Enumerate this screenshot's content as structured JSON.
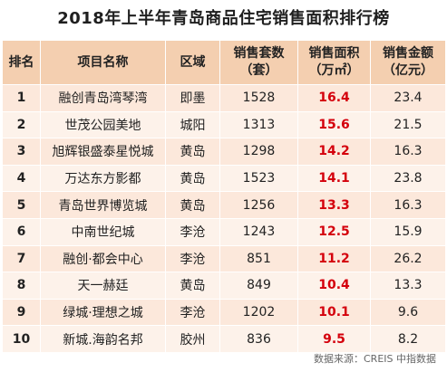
{
  "title": "2018年上半年青岛商品住宅销售面积排行榜",
  "headers": {
    "rank": "排名",
    "project": "项目名称",
    "district": "区域",
    "units_line1": "销售套数",
    "units_line2": "（套）",
    "area_line1": "销售面积",
    "area_line2": "（万㎡）",
    "amount_line1": "销售金额",
    "amount_line2": "（亿元）"
  },
  "rows": [
    {
      "rank": "1",
      "project": "融创青岛湾琴湾",
      "district": "即墨",
      "units": "1528",
      "area": "16.4",
      "amount": "23.4"
    },
    {
      "rank": "2",
      "project": "世茂公园美地",
      "district": "城阳",
      "units": "1313",
      "area": "15.6",
      "amount": "21.5"
    },
    {
      "rank": "3",
      "project": "旭辉银盛泰星悦城",
      "district": "黄岛",
      "units": "1298",
      "area": "14.2",
      "amount": "16.3"
    },
    {
      "rank": "4",
      "project": "万达东方影都",
      "district": "黄岛",
      "units": "1523",
      "area": "14.1",
      "amount": "23.8"
    },
    {
      "rank": "5",
      "project": "青岛世界博览城",
      "district": "黄岛",
      "units": "1256",
      "area": "13.3",
      "amount": "16.3"
    },
    {
      "rank": "6",
      "project": "中南世纪城",
      "district": "李沧",
      "units": "1243",
      "area": "12.5",
      "amount": "15.9"
    },
    {
      "rank": "7",
      "project": "融创·都会中心",
      "district": "李沧",
      "units": "851",
      "area": "11.2",
      "amount": "26.2"
    },
    {
      "rank": "8",
      "project": "天一赫廷",
      "district": "黄岛",
      "units": "849",
      "area": "10.4",
      "amount": "13.3"
    },
    {
      "rank": "9",
      "project": "绿城·理想之城",
      "district": "李沧",
      "units": "1202",
      "area": "10.1",
      "amount": "9.6"
    },
    {
      "rank": "10",
      "project": "新城.海韵名邦",
      "district": "胶州",
      "units": "836",
      "area": "9.5",
      "amount": "8.2"
    }
  ],
  "footer": "数据来源：CREIS 中指数据",
  "colors": {
    "header_bg": "#f4cfb0",
    "row_odd_bg": "#fce8db",
    "row_even_bg": "#fdf2ea",
    "area_text": "#d4000c"
  }
}
